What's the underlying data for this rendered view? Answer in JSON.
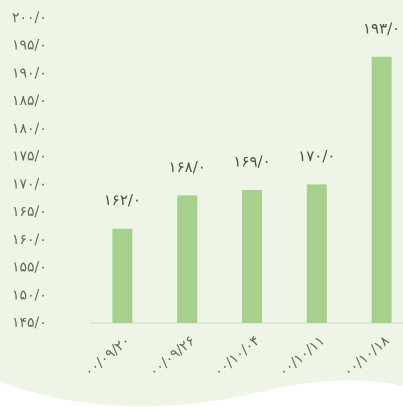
{
  "chart_data": {
    "type": "bar",
    "categories": [
      "۰۰/۰۹/۲۰",
      "۰۰/۰۹/۲۶",
      "۰۰/۱۰/۰۴",
      "۰۰/۱۰/۱۱",
      "۰۰/۱۰/۱۸"
    ],
    "values": [
      162,
      168,
      169,
      170,
      193
    ],
    "value_labels": [
      "۱۶۲/۰",
      "۱۶۸/۰",
      "۱۶۹/۰",
      "۱۷۰/۰",
      "۱۹۳/۰"
    ],
    "color": "#a6d08b",
    "ylim": [
      145,
      200
    ],
    "yticks": [
      {
        "value": 200,
        "label": "۲۰۰/۰"
      },
      {
        "value": 195,
        "label": "۱۹۵/۰"
      },
      {
        "value": 190,
        "label": "۱۹۰/۰"
      },
      {
        "value": 185,
        "label": "۱۸۵/۰"
      },
      {
        "value": 180,
        "label": "۱۸۰/۰"
      },
      {
        "value": 175,
        "label": "۱۷۵/۰"
      },
      {
        "value": 170,
        "label": "۱۷۰/۰"
      },
      {
        "value": 165,
        "label": "۱۶۵/۰"
      },
      {
        "value": 160,
        "label": "۱۶۰/۰"
      },
      {
        "value": 155,
        "label": "۱۵۵/۰"
      },
      {
        "value": 150,
        "label": "۱۵۰/۰"
      },
      {
        "value": 145,
        "label": "۱۴۵/۰"
      }
    ],
    "grid": false
  }
}
